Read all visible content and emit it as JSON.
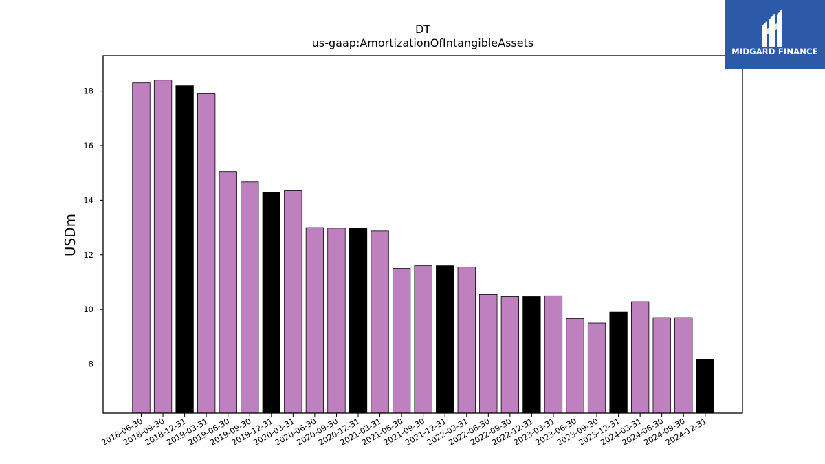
{
  "chart_data": {
    "type": "bar",
    "title": "DT",
    "subtitle": "us-gaap:AmortizationOfIntangibleAssets",
    "ylabel": "USDm",
    "xlabel": "",
    "ylim": [
      6.2,
      19.3
    ],
    "yticks": [
      8,
      10,
      12,
      14,
      16,
      18
    ],
    "grid": false,
    "colors": {
      "quarter": "#bf80bf",
      "year_end": "#000000",
      "edge": "#000000"
    },
    "categories": [
      "2018-06-30",
      "2018-09-30",
      "2018-12-31",
      "2019-03-31",
      "2019-06-30",
      "2019-09-30",
      "2019-12-31",
      "2020-03-31",
      "2020-06-30",
      "2020-09-30",
      "2020-12-31",
      "2021-03-31",
      "2021-06-30",
      "2021-09-30",
      "2021-12-31",
      "2022-03-31",
      "2022-06-30",
      "2022-09-30",
      "2022-12-31",
      "2023-03-31",
      "2023-06-30",
      "2023-09-30",
      "2023-12-31",
      "2024-03-31",
      "2024-06-30",
      "2024-09-30",
      "2024-12-31"
    ],
    "values": [
      18.3,
      18.4,
      18.2,
      17.9,
      15.05,
      14.67,
      14.3,
      14.35,
      13.0,
      12.98,
      12.98,
      12.88,
      11.5,
      11.6,
      11.6,
      11.55,
      10.55,
      10.47,
      10.47,
      10.5,
      9.67,
      9.5,
      9.9,
      10.28,
      9.7,
      9.7,
      8.18
    ],
    "year_end": [
      false,
      false,
      true,
      false,
      false,
      false,
      true,
      false,
      false,
      false,
      true,
      false,
      false,
      false,
      true,
      false,
      false,
      false,
      true,
      false,
      false,
      false,
      true,
      false,
      false,
      false,
      true
    ]
  },
  "logo": {
    "text": "MIDGARD FINANCE",
    "bg": "#2c5aa8"
  }
}
